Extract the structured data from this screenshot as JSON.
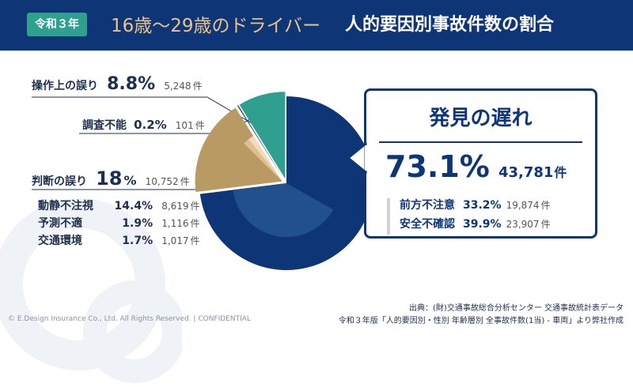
{
  "header": {
    "badge": "令和３年",
    "title_main": "16歳〜29歳のドライバー",
    "title_sub": "人的要因別事故件数の割合"
  },
  "chart_data": {
    "type": "pie",
    "title": "16歳〜29歳のドライバー 人的要因別事故件数の割合",
    "slices": [
      {
        "name": "発見の遅れ",
        "percent": 73.1,
        "count": 43781,
        "color": "#0e3677",
        "sub": [
          {
            "name": "前方不注意",
            "percent": 33.2,
            "count": 19874,
            "color": "#0e3677"
          },
          {
            "name": "安全不確認",
            "percent": 39.9,
            "count": 23907,
            "color": "#22508f"
          }
        ]
      },
      {
        "name": "判断の誤り",
        "percent": 18.0,
        "count": 10752,
        "color": "#b99a63",
        "sub": [
          {
            "name": "動静不注視",
            "percent": 14.4,
            "count": 8619,
            "color": "#b99a63"
          },
          {
            "name": "予測不適",
            "percent": 1.9,
            "count": 1116,
            "color": "#dcc08e"
          },
          {
            "name": "交通環境",
            "percent": 1.7,
            "count": 1017,
            "color": "#f0dcb6"
          }
        ]
      },
      {
        "name": "調査不能",
        "percent": 0.2,
        "count": 101,
        "color": "#27435f"
      },
      {
        "name": "操作上の誤り",
        "percent": 8.8,
        "count": 5248,
        "color": "#2f9f90"
      }
    ]
  },
  "labels": {
    "operation": {
      "name": "操作上の誤り",
      "pct": "8.8%",
      "count": "5,248",
      "unit": "件"
    },
    "unknown": {
      "name": "調査不能",
      "pct": "0.2%",
      "count": "101",
      "unit": "件"
    },
    "judgment": {
      "name": "判断の誤り",
      "pct": "18",
      "pct_unit": "%",
      "count": "10,752",
      "unit": "件"
    },
    "judgment_sub": [
      {
        "name": "動静不注視",
        "pct": "14.4%",
        "count": "8,619",
        "unit": "件"
      },
      {
        "name": "予測不適",
        "pct": "1.9%",
        "count": "1,116",
        "unit": "件"
      },
      {
        "name": "交通環境",
        "pct": "1.7%",
        "count": "1,017",
        "unit": "件"
      }
    ]
  },
  "callout": {
    "title": "発見の遅れ",
    "pct": "73.1%",
    "count": "43,781",
    "unit": "件",
    "rows": [
      {
        "name": "前方不注意",
        "pct": "33.2%",
        "count": "19,874",
        "unit": "件"
      },
      {
        "name": "安全不確認",
        "pct": "39.9%",
        "count": "23,907",
        "unit": "件"
      }
    ]
  },
  "footer": {
    "copyright": "© E.Design Insurance Co., Ltd. All Rights Reserved. | CONFIDENTIAL",
    "source_line1": "出典：(財)交通事故総合分析センター 交通事故統計表データ",
    "source_line2": "令和３年版「人的要因別・性別 年齢層別 全事故件数(1当) - 車両」より弊社作成"
  }
}
